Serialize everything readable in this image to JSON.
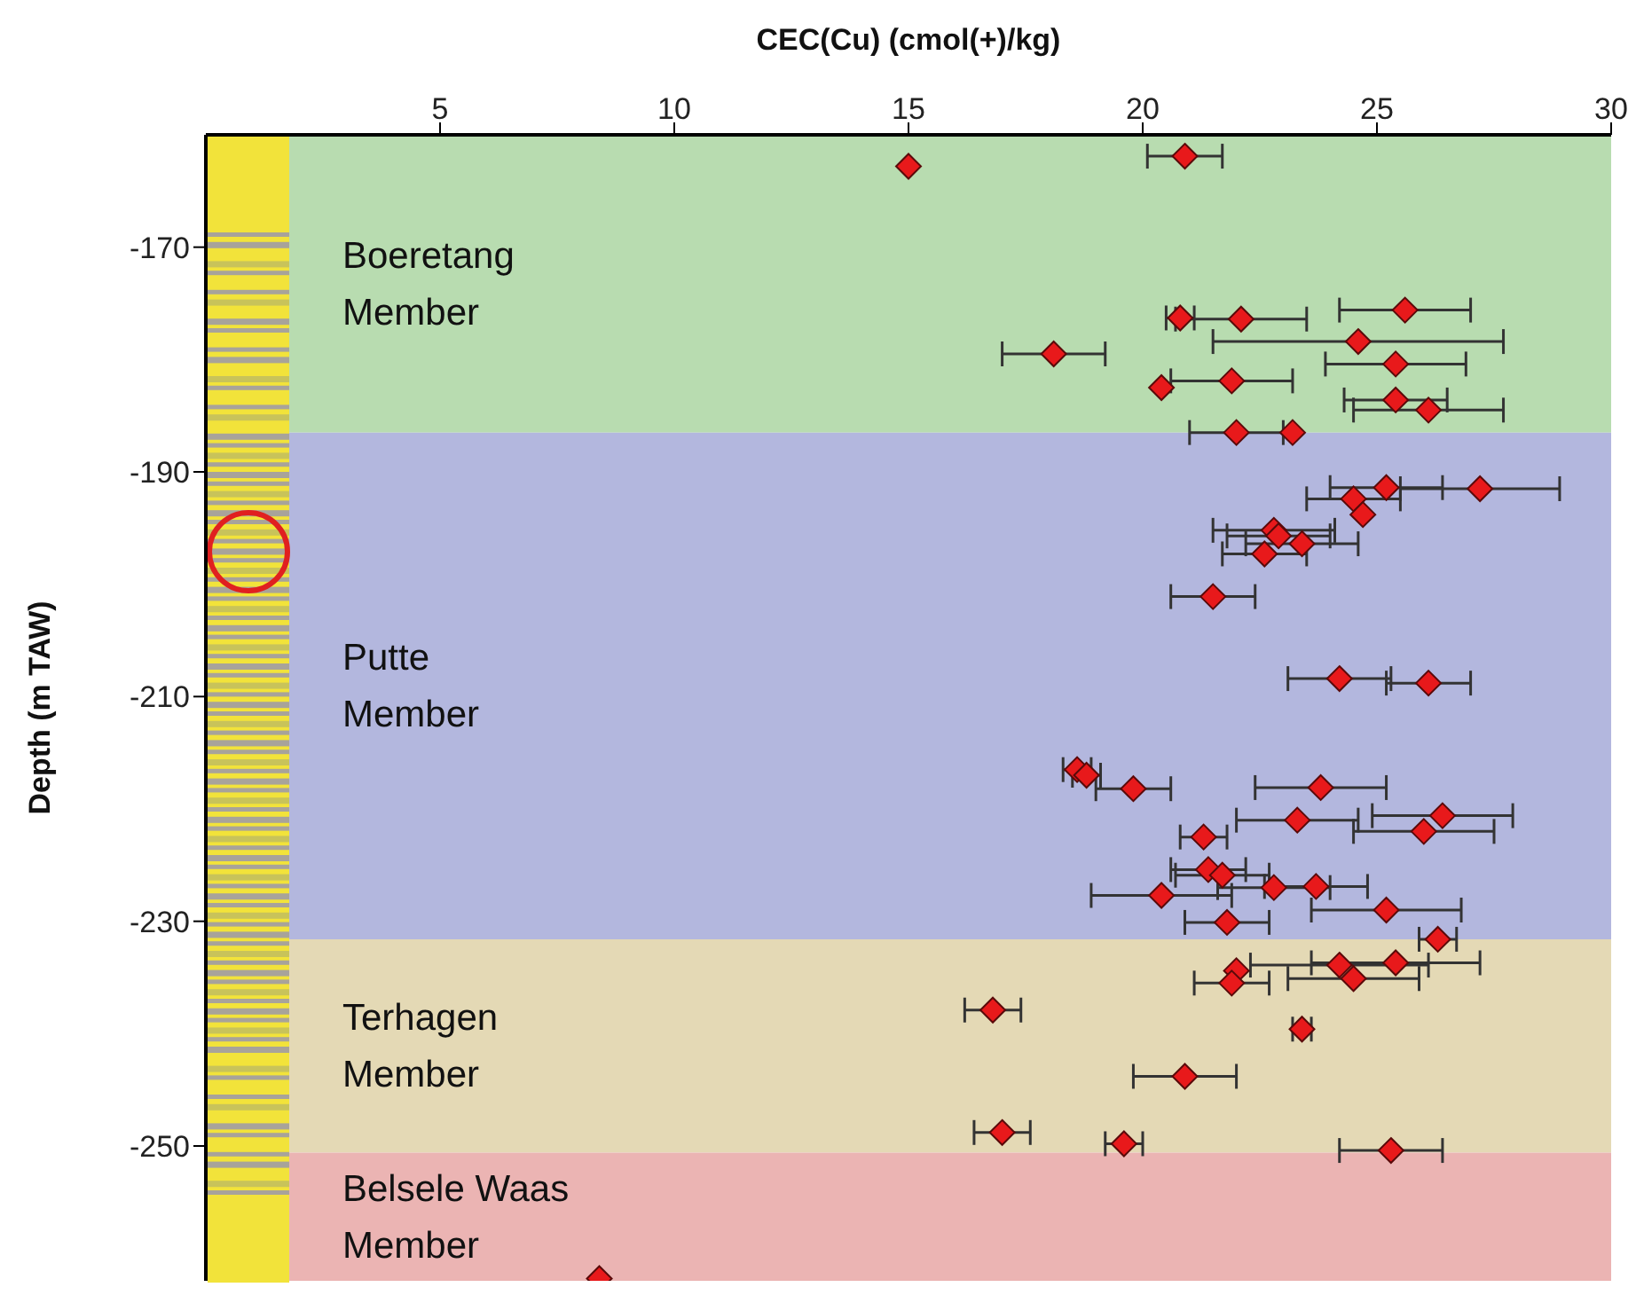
{
  "chart_data": {
    "type": "scatter",
    "xlabel": "CEC(Cu) (cmol(+)/kg)",
    "ylabel": "Depth (m TAW)",
    "xlim": [
      0,
      30
    ],
    "xticks": [
      5,
      10,
      15,
      20,
      25,
      30
    ],
    "ylim": [
      -262,
      -160
    ],
    "yticks": [
      -170,
      -190,
      -210,
      -230,
      -250
    ],
    "grid": false,
    "legend": false,
    "marker": "diamond",
    "bands": [
      {
        "axis": "y",
        "from": -186.5,
        "to": -160,
        "label": "Boeretang Member",
        "color": "#b8dcb0"
      },
      {
        "axis": "y",
        "from": -231.6,
        "to": -186.5,
        "label": "Putte Member",
        "color": "#b3b7de"
      },
      {
        "axis": "y",
        "from": -250.6,
        "to": -231.6,
        "label": "Terhagen Member",
        "color": "#e4d9b5"
      },
      {
        "axis": "y",
        "from": -262,
        "to": -250.6,
        "label": "Belsele Waas Member",
        "color": "#ebb4b3"
      }
    ],
    "series": [
      {
        "color": "#e8191b",
        "x": [
          15.0,
          20.9,
          25.6,
          20.8,
          22.1,
          24.6,
          18.1,
          25.4,
          20.4,
          21.9,
          25.4,
          26.1,
          22.0,
          23.2,
          25.2,
          27.2,
          24.5,
          24.7,
          22.8,
          22.9,
          23.4,
          22.6,
          21.5,
          24.2,
          26.1,
          18.6,
          18.8,
          19.8,
          23.8,
          26.4,
          23.3,
          26.0,
          21.3,
          21.4,
          21.7,
          22.8,
          23.7,
          20.4,
          25.2,
          21.8,
          26.3,
          25.4,
          24.2,
          22.0,
          24.5,
          21.9,
          16.8,
          23.4,
          20.9,
          17.0,
          19.6,
          25.3,
          8.4
        ],
        "values": [
          -162.8,
          -161.9,
          -175.6,
          -176.3,
          -176.4,
          -178.4,
          -179.5,
          -180.4,
          -182.5,
          -181.9,
          -183.6,
          -184.5,
          -186.5,
          -186.5,
          -191.4,
          -191.5,
          -192.4,
          -193.8,
          -195.2,
          -195.7,
          -196.4,
          -197.3,
          -201.1,
          -208.4,
          -208.8,
          -216.5,
          -217.0,
          -218.2,
          -218.1,
          -220.6,
          -221.0,
          -222.0,
          -222.5,
          -225.4,
          -225.9,
          -227.0,
          -226.9,
          -227.7,
          -229.0,
          -230.1,
          -231.6,
          -233.7,
          -233.9,
          -234.4,
          -235.1,
          -235.5,
          -237.9,
          -239.6,
          -243.8,
          -248.8,
          -249.8,
          -250.4,
          -261.8
        ],
        "xerrors": [
          null,
          0.8,
          1.4,
          0.3,
          1.4,
          3.1,
          1.1,
          1.5,
          null,
          1.3,
          1.1,
          1.6,
          1.0,
          null,
          1.2,
          1.7,
          1.0,
          null,
          1.3,
          1.1,
          1.2,
          0.9,
          0.9,
          1.1,
          0.9,
          0.3,
          0.3,
          0.8,
          1.4,
          1.5,
          1.3,
          1.5,
          0.5,
          0.8,
          1.0,
          1.2,
          1.1,
          1.5,
          1.6,
          0.9,
          0.4,
          1.8,
          1.9,
          null,
          1.4,
          0.8,
          0.6,
          0.2,
          1.1,
          0.6,
          0.4,
          1.1,
          null
        ]
      }
    ]
  }
}
